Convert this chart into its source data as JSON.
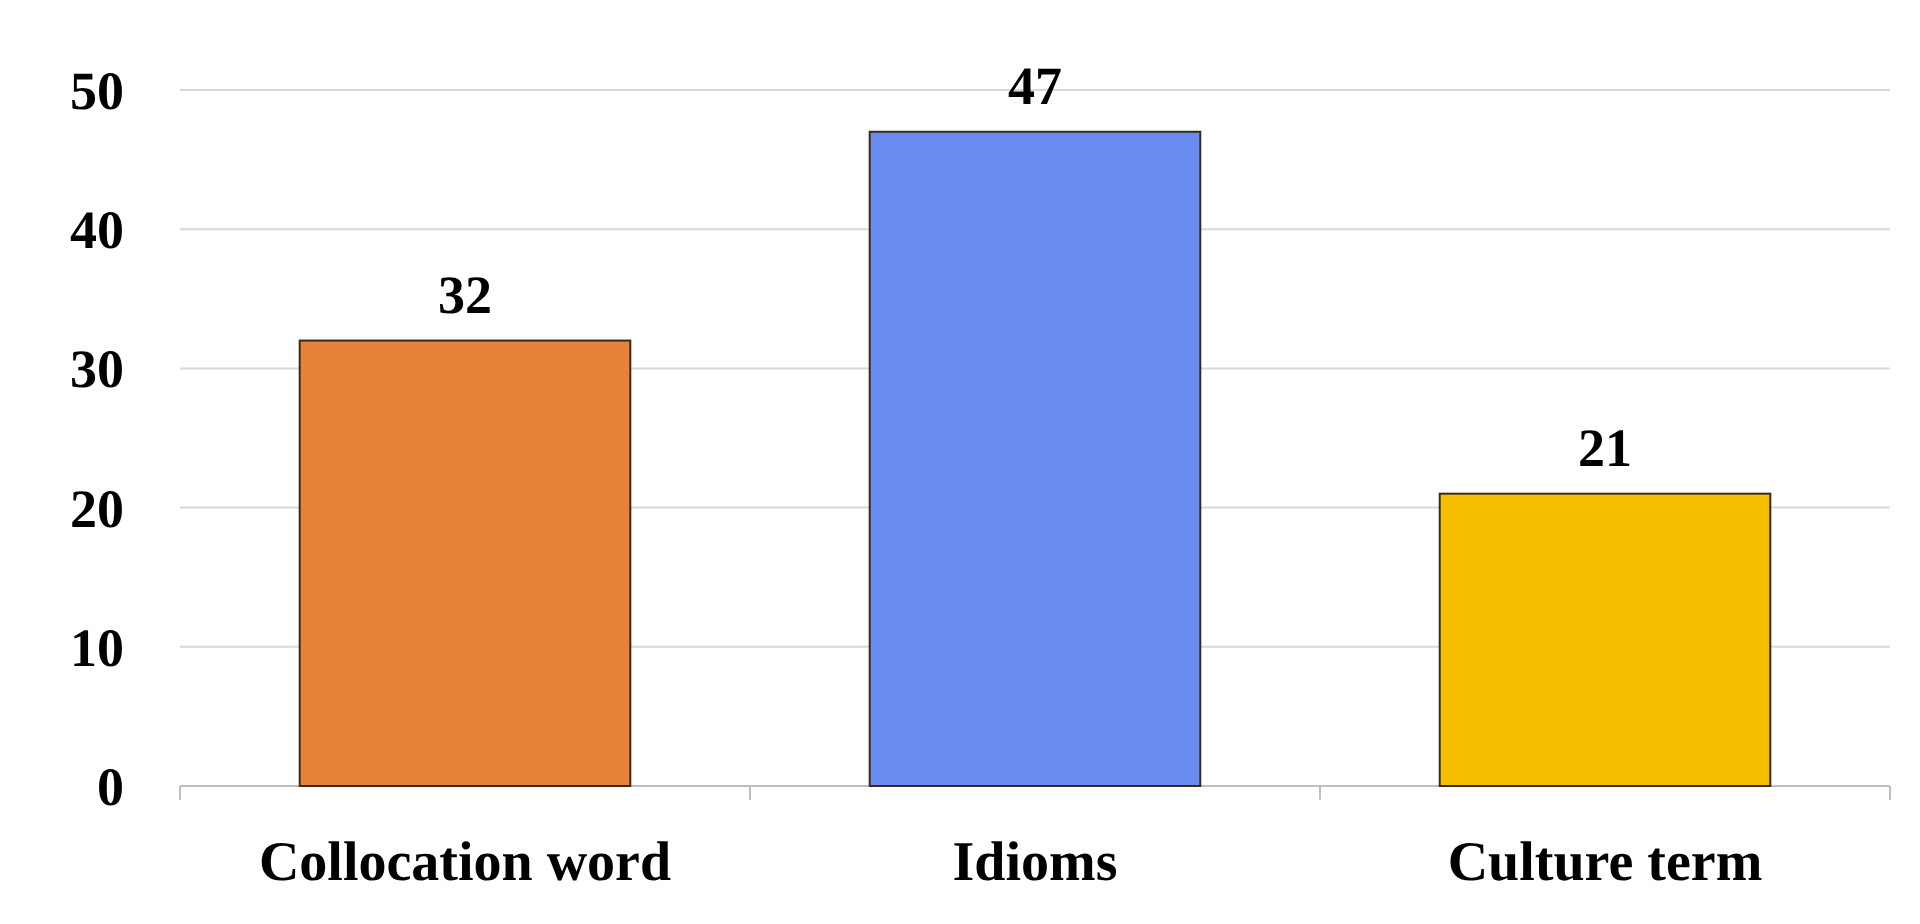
{
  "chart_data": {
    "type": "bar",
    "categories": [
      "Collocation word",
      "Idioms",
      "Culture term"
    ],
    "values": [
      32,
      47,
      21
    ],
    "colors": [
      "#e8823a",
      "#6a8cf0",
      "#f5c000"
    ],
    "ylim": [
      0,
      50
    ],
    "yticks": [
      0,
      10,
      20,
      30,
      40,
      50
    ],
    "grid": "y",
    "data_labels": true
  }
}
